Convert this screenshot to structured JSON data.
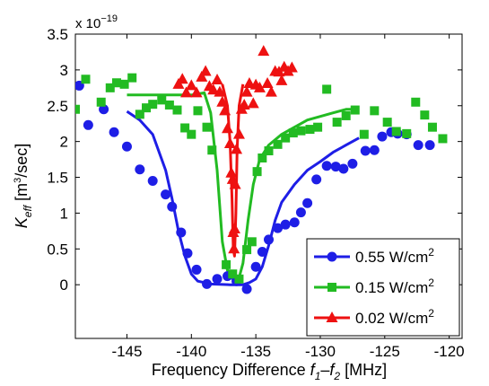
{
  "chart_data": {
    "type": "scatter",
    "xlabel_prefix": "Frequency Difference",
    "xlabel_f1": "f",
    "xlabel_sub1": "1",
    "xlabel_dash": "–",
    "xlabel_f2": "f",
    "xlabel_sub2": "2",
    "xlabel_unit": "[MHz]",
    "ylabel_main": "K",
    "ylabel_sub": "eff",
    "ylabel_unit": "[m",
    "ylabel_unit_sup": "3",
    "ylabel_unit_tail": "/sec]",
    "exponent_prefix": "x 10",
    "exponent_power": "−19",
    "xlim": [
      -149,
      -119
    ],
    "ylim": [
      -0.75,
      3.5
    ],
    "xticks": [
      -145,
      -140,
      -135,
      -130,
      -125,
      -120
    ],
    "yticks": [
      0,
      0.5,
      1,
      1.5,
      2,
      2.5,
      3,
      3.5
    ],
    "legend_position": "bottom-right",
    "series": [
      {
        "name": "0.55 W/cm",
        "name_sup": "2",
        "color": "#1e1ee6",
        "marker": "circle",
        "points": [
          [
            -148.7,
            2.78
          ],
          [
            -148.0,
            2.23
          ],
          [
            -146.8,
            2.45
          ],
          [
            -146.0,
            2.13
          ],
          [
            -145.0,
            1.93
          ],
          [
            -144.0,
            1.61
          ],
          [
            -143.0,
            1.45
          ],
          [
            -142.0,
            1.26
          ],
          [
            -141.5,
            1.09
          ],
          [
            -140.8,
            0.73
          ],
          [
            -140.3,
            0.44
          ],
          [
            -139.6,
            0.21
          ],
          [
            -138.8,
            0.01
          ],
          [
            -138.0,
            0.08
          ],
          [
            -137.2,
            0.12
          ],
          [
            -136.5,
            0.05
          ],
          [
            -135.7,
            -0.06
          ],
          [
            -135.0,
            0.25
          ],
          [
            -134.5,
            0.46
          ],
          [
            -134.0,
            0.63
          ],
          [
            -133.3,
            0.79
          ],
          [
            -132.7,
            0.84
          ],
          [
            -132.0,
            0.87
          ],
          [
            -131.5,
            1.01
          ],
          [
            -131.0,
            1.14
          ],
          [
            -130.3,
            1.47
          ],
          [
            -129.5,
            1.66
          ],
          [
            -128.8,
            1.65
          ],
          [
            -128.2,
            1.62
          ],
          [
            -127.5,
            1.69
          ],
          [
            -126.5,
            1.87
          ],
          [
            -125.8,
            1.88
          ],
          [
            -125.2,
            2.07
          ],
          [
            -124.5,
            2.13
          ],
          [
            -124.0,
            2.11
          ],
          [
            -123.3,
            2.1
          ],
          [
            -122.4,
            1.95
          ],
          [
            -121.5,
            1.95
          ]
        ],
        "fit": [
          [
            -145.0,
            2.42
          ],
          [
            -144.0,
            2.3
          ],
          [
            -143.0,
            2.1
          ],
          [
            -142.0,
            1.6
          ],
          [
            -141.5,
            1.2
          ],
          [
            -141.0,
            0.75
          ],
          [
            -140.5,
            0.4
          ],
          [
            -140.0,
            0.15
          ],
          [
            -139.5,
            0.05
          ],
          [
            -138.5,
            0.01
          ],
          [
            -137.0,
            0.0
          ],
          [
            -136.0,
            0.0
          ],
          [
            -135.5,
            0.03
          ],
          [
            -135.0,
            0.08
          ],
          [
            -134.5,
            0.25
          ],
          [
            -134.0,
            0.55
          ],
          [
            -133.5,
            0.9
          ],
          [
            -133.0,
            1.15
          ],
          [
            -132.0,
            1.4
          ],
          [
            -131.0,
            1.6
          ],
          [
            -130.0,
            1.72
          ],
          [
            -129.0,
            1.85
          ],
          [
            -128.0,
            1.95
          ],
          [
            -127.0,
            2.05
          ]
        ]
      },
      {
        "name": "0.15 W/cm",
        "name_sup": "2",
        "color": "#22bb22",
        "marker": "square",
        "points": [
          [
            -149.0,
            2.45
          ],
          [
            -148.2,
            2.87
          ],
          [
            -147.0,
            2.55
          ],
          [
            -146.3,
            2.75
          ],
          [
            -145.8,
            2.82
          ],
          [
            -145.2,
            2.8
          ],
          [
            -144.6,
            2.89
          ],
          [
            -144.0,
            2.38
          ],
          [
            -143.5,
            2.47
          ],
          [
            -143.0,
            2.52
          ],
          [
            -142.3,
            2.58
          ],
          [
            -141.7,
            2.51
          ],
          [
            -141.1,
            2.44
          ],
          [
            -140.5,
            2.19
          ],
          [
            -140.0,
            2.1
          ],
          [
            -139.5,
            2.43
          ],
          [
            -138.8,
            2.2
          ],
          [
            -138.4,
            1.88
          ],
          [
            -137.3,
            0.28
          ],
          [
            -136.8,
            0.15
          ],
          [
            -136.3,
            0.08
          ],
          [
            -135.7,
            0.49
          ],
          [
            -135.3,
            0.6
          ],
          [
            -134.9,
            1.58
          ],
          [
            -134.5,
            1.77
          ],
          [
            -134.0,
            1.87
          ],
          [
            -133.3,
            1.96
          ],
          [
            -132.7,
            2.05
          ],
          [
            -132.1,
            2.12
          ],
          [
            -131.5,
            2.15
          ],
          [
            -130.8,
            2.17
          ],
          [
            -130.2,
            2.2
          ],
          [
            -129.5,
            2.73
          ],
          [
            -128.7,
            2.27
          ],
          [
            -128.0,
            2.36
          ],
          [
            -127.3,
            2.44
          ],
          [
            -126.6,
            2.1
          ],
          [
            -125.8,
            2.43
          ],
          [
            -124.8,
            2.27
          ],
          [
            -124.1,
            2.14
          ],
          [
            -123.3,
            2.11
          ],
          [
            -122.6,
            2.55
          ],
          [
            -121.9,
            2.37
          ],
          [
            -121.3,
            2.2
          ],
          [
            -120.5,
            2.04
          ]
        ],
        "fit": [
          [
            -145.0,
            2.65
          ],
          [
            -143.0,
            2.65
          ],
          [
            -141.0,
            2.65
          ],
          [
            -140.0,
            2.65
          ],
          [
            -139.0,
            2.68
          ],
          [
            -138.5,
            2.4
          ],
          [
            -138.0,
            1.6
          ],
          [
            -137.6,
            0.6
          ],
          [
            -137.2,
            0.2
          ],
          [
            -136.8,
            0.08
          ],
          [
            -136.3,
            0.1
          ],
          [
            -136.0,
            0.3
          ],
          [
            -135.6,
            0.9
          ],
          [
            -135.2,
            1.4
          ],
          [
            -134.7,
            1.75
          ],
          [
            -134.0,
            1.95
          ],
          [
            -133.0,
            2.1
          ],
          [
            -132.0,
            2.2
          ],
          [
            -131.0,
            2.3
          ],
          [
            -130.0,
            2.35
          ],
          [
            -129.0,
            2.4
          ],
          [
            -128.0,
            2.45
          ],
          [
            -127.0,
            2.45
          ]
        ]
      },
      {
        "name": "0.02 W/cm",
        "name_sup": "2",
        "color": "#ee1111",
        "marker": "triangle",
        "points": [
          [
            -141.0,
            2.8
          ],
          [
            -140.7,
            2.87
          ],
          [
            -140.4,
            2.68
          ],
          [
            -140.0,
            2.78
          ],
          [
            -139.6,
            2.68
          ],
          [
            -139.2,
            2.9
          ],
          [
            -138.9,
            2.98
          ],
          [
            -138.6,
            2.77
          ],
          [
            -138.3,
            2.72
          ],
          [
            -138.0,
            2.86
          ],
          [
            -137.8,
            2.69
          ],
          [
            -137.6,
            2.55
          ],
          [
            -137.4,
            2.43
          ],
          [
            -137.2,
            2.18
          ],
          [
            -137.0,
            1.97
          ],
          [
            -136.9,
            1.56
          ],
          [
            -136.8,
            1.47
          ],
          [
            -136.75,
            0.73
          ],
          [
            -136.7,
            0.5
          ],
          [
            -136.65,
            0.78
          ],
          [
            -136.6,
            1.4
          ],
          [
            -136.5,
            1.89
          ],
          [
            -136.3,
            2.1
          ],
          [
            -136.1,
            2.45
          ],
          [
            -135.9,
            2.51
          ],
          [
            -135.7,
            2.69
          ],
          [
            -135.5,
            2.81
          ],
          [
            -135.2,
            2.53
          ],
          [
            -135.0,
            2.79
          ],
          [
            -134.7,
            2.75
          ],
          [
            -134.4,
            3.26
          ],
          [
            -134.1,
            2.81
          ],
          [
            -133.8,
            2.69
          ],
          [
            -133.5,
            2.98
          ],
          [
            -133.2,
            2.97
          ],
          [
            -133.0,
            2.85
          ],
          [
            -132.8,
            3.04
          ],
          [
            -132.5,
            2.98
          ],
          [
            -132.2,
            3.03
          ]
        ],
        "fit": [
          [
            -137.6,
            2.8
          ],
          [
            -137.2,
            2.5
          ],
          [
            -137.0,
            2.0
          ],
          [
            -136.85,
            1.2
          ],
          [
            -136.75,
            0.5
          ],
          [
            -136.65,
            0.4
          ],
          [
            -136.55,
            1.0
          ],
          [
            -136.45,
            1.9
          ],
          [
            -136.3,
            2.5
          ],
          [
            -136.0,
            2.8
          ]
        ]
      }
    ]
  }
}
